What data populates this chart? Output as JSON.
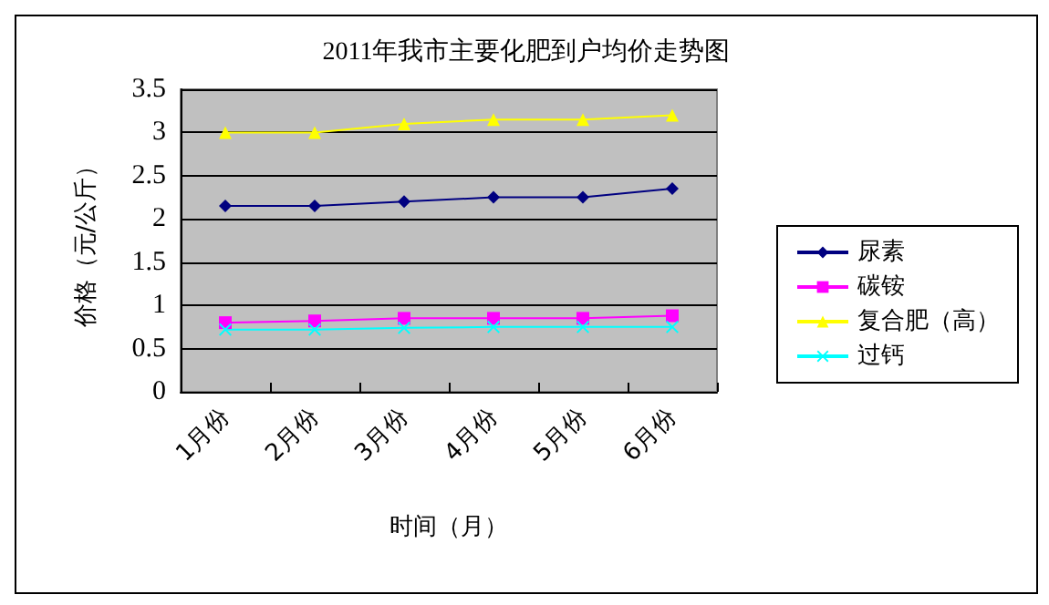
{
  "chart_data": {
    "type": "line",
    "title": "2011年我市主要化肥到户均价走势图",
    "xlabel": "时间（月）",
    "ylabel": "价格（元/公斤）",
    "categories": [
      "1月份",
      "2月份",
      "3月份",
      "4月份",
      "5月份",
      "6月份"
    ],
    "series": [
      {
        "name": "尿素",
        "color": "#000080",
        "marker": "diamond",
        "values": [
          2.15,
          2.15,
          2.2,
          2.25,
          2.25,
          2.35
        ]
      },
      {
        "name": "碳铵",
        "color": "#ff00ff",
        "marker": "square",
        "values": [
          0.8,
          0.82,
          0.85,
          0.85,
          0.85,
          0.88
        ]
      },
      {
        "name": "复合肥（高）",
        "color": "#ffff00",
        "marker": "triangle",
        "values": [
          3.0,
          3.0,
          3.1,
          3.15,
          3.15,
          3.2
        ]
      },
      {
        "name": "过钙",
        "color": "#00ffff",
        "marker": "cross",
        "values": [
          0.72,
          0.72,
          0.74,
          0.75,
          0.75,
          0.75
        ]
      }
    ],
    "ylim": [
      0,
      3.5
    ],
    "yticks": [
      0,
      0.5,
      1,
      1.5,
      2,
      2.5,
      3,
      3.5
    ],
    "grid": "y",
    "legend": "right"
  }
}
